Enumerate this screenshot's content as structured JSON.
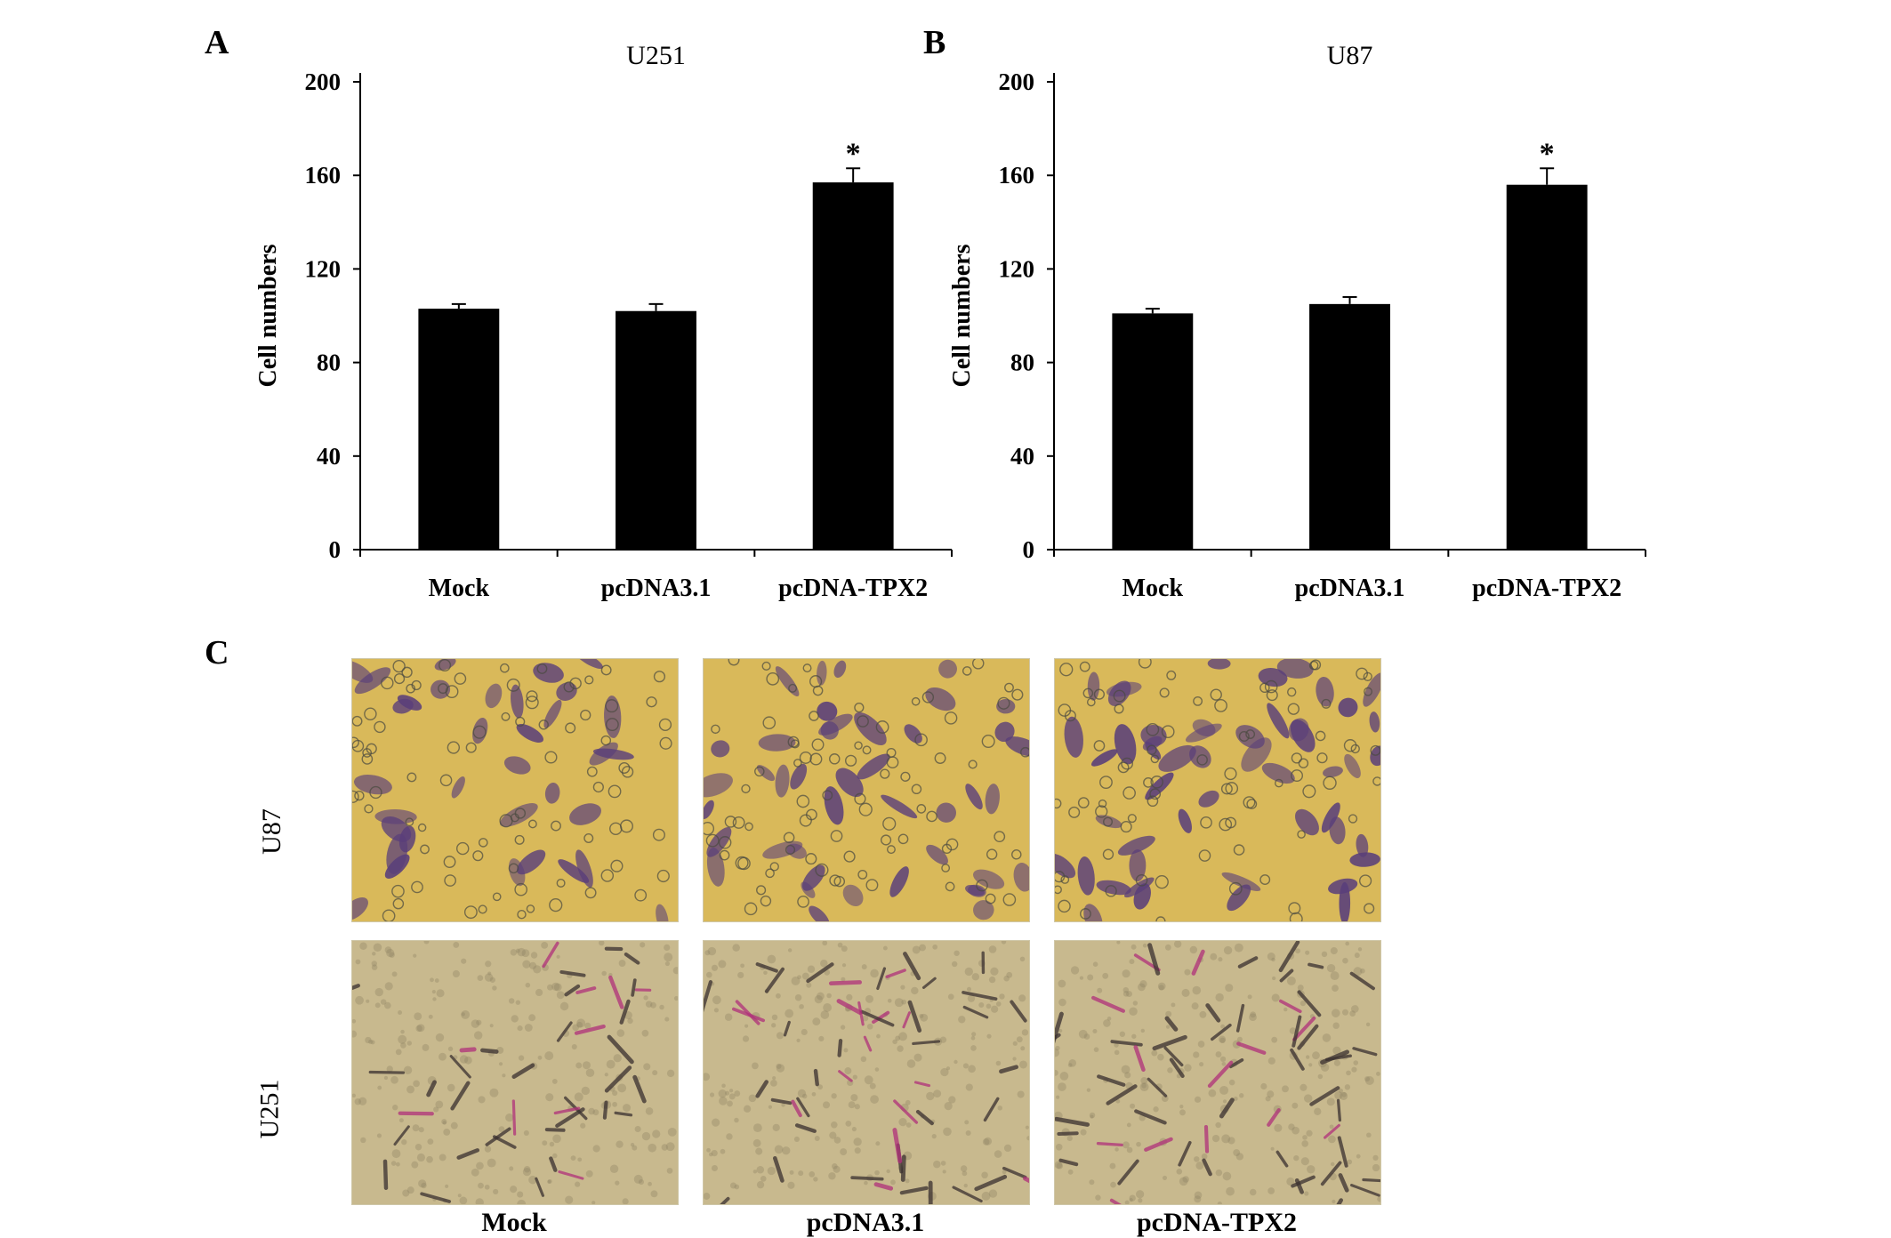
{
  "panels": {
    "a": "A",
    "b": "B",
    "c": "C"
  },
  "chart_data": [
    {
      "type": "bar",
      "title": "U251",
      "ylabel": "Cell numbers",
      "xlabel": "",
      "categories": [
        "Mock",
        "pcDNA3.1",
        "pcDNA-TPX2"
      ],
      "values": [
        103,
        102,
        157
      ],
      "errors": [
        2,
        3,
        6
      ],
      "significance": [
        "",
        "",
        "*"
      ],
      "ylim": [
        0,
        200
      ],
      "yticks": [
        0,
        40,
        80,
        120,
        160,
        200
      ],
      "grid": false,
      "bar_color": "#000000"
    },
    {
      "type": "bar",
      "title": "U87",
      "ylabel": "Cell numbers",
      "xlabel": "",
      "categories": [
        "Mock",
        "pcDNA3.1",
        "pcDNA-TPX2"
      ],
      "values": [
        101,
        105,
        156
      ],
      "errors": [
        2,
        3,
        7
      ],
      "significance": [
        "",
        "",
        "*"
      ],
      "ylim": [
        0,
        200
      ],
      "yticks": [
        0,
        40,
        80,
        120,
        160,
        200
      ],
      "grid": false,
      "bar_color": "#000000"
    }
  ],
  "micrographs": {
    "rows": [
      "U87",
      "U251"
    ],
    "columns": [
      "Mock",
      "pcDNA3.1",
      "pcDNA-TPX2"
    ],
    "colors": {
      "u87_background": "#d9b95a",
      "u87_stain": "#5a3f7a",
      "u251_background": "#c8b98e",
      "u251_stain": "#3a3030",
      "u251_accent": "#b0307a"
    }
  }
}
